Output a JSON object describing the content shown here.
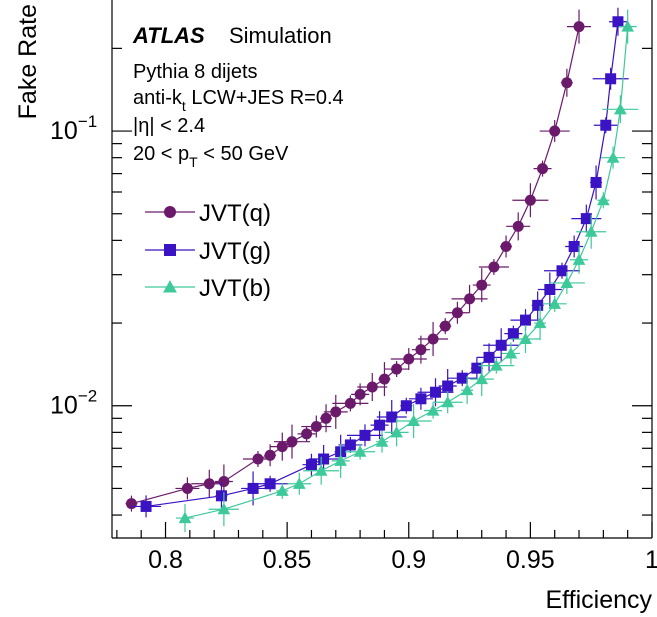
{
  "chart_data": {
    "type": "scatter",
    "experiment_label": "ATLAS",
    "experiment_sublabel": "Simulation",
    "annotations": [
      "Pythia 8 dijets",
      "anti-k",
      "t",
      " LCW+JES R=0.4",
      "|η| < 2.4",
      "20 < p",
      "T",
      " < 50 GeV"
    ],
    "xlabel": "Efficiency",
    "ylabel": "Fake Rate",
    "xlim": [
      0.778,
      1.0
    ],
    "ylim": [
      0.0033,
      0.3
    ],
    "yscale": "log",
    "x_ticks": [
      "0.8",
      "0.85",
      "0.9",
      "0.95",
      "1"
    ],
    "y_ticks": [
      {
        "value": 0.1,
        "base": "10",
        "exp": "−1"
      },
      {
        "value": 0.01,
        "base": "10",
        "exp": "−2"
      }
    ],
    "grid": false,
    "legend_position": "upper-left",
    "series": [
      {
        "name": "JVT(q)",
        "color": "#6b1a6b",
        "marker": "circle",
        "x": [
          0.786,
          0.809,
          0.818,
          0.824,
          0.838,
          0.843,
          0.848,
          0.852,
          0.858,
          0.862,
          0.866,
          0.87,
          0.876,
          0.88,
          0.885,
          0.89,
          0.895,
          0.9,
          0.905,
          0.91,
          0.915,
          0.92,
          0.925,
          0.93,
          0.935,
          0.94,
          0.945,
          0.95,
          0.955,
          0.96,
          0.965,
          0.97
        ],
        "y": [
          0.0044,
          0.005,
          0.0052,
          0.0053,
          0.0064,
          0.0066,
          0.0071,
          0.0074,
          0.0079,
          0.0084,
          0.009,
          0.0095,
          0.0102,
          0.011,
          0.0117,
          0.0125,
          0.0136,
          0.0148,
          0.016,
          0.0175,
          0.0195,
          0.0218,
          0.0245,
          0.0275,
          0.032,
          0.038,
          0.045,
          0.056,
          0.073,
          0.1,
          0.15,
          0.24
        ]
      },
      {
        "name": "JVT(g)",
        "color": "#3a13c4",
        "marker": "square",
        "x": [
          0.792,
          0.823,
          0.836,
          0.843,
          0.86,
          0.865,
          0.872,
          0.876,
          0.882,
          0.888,
          0.893,
          0.899,
          0.905,
          0.911,
          0.916,
          0.922,
          0.928,
          0.933,
          0.938,
          0.943,
          0.948,
          0.953,
          0.958,
          0.963,
          0.968,
          0.973,
          0.977,
          0.981,
          0.983,
          0.986
        ],
        "y": [
          0.0043,
          0.0047,
          0.005,
          0.0052,
          0.0061,
          0.0064,
          0.0068,
          0.0072,
          0.0078,
          0.0085,
          0.0091,
          0.01,
          0.0106,
          0.0112,
          0.0118,
          0.0126,
          0.0137,
          0.015,
          0.0166,
          0.0183,
          0.0205,
          0.0232,
          0.0265,
          0.031,
          0.038,
          0.048,
          0.065,
          0.105,
          0.155,
          0.25
        ]
      },
      {
        "name": "JVT(b)",
        "color": "#3ec99a",
        "marker": "triangle",
        "x": [
          0.808,
          0.824,
          0.848,
          0.855,
          0.864,
          0.872,
          0.88,
          0.889,
          0.895,
          0.902,
          0.91,
          0.916,
          0.924,
          0.93,
          0.936,
          0.942,
          0.948,
          0.954,
          0.96,
          0.965,
          0.97,
          0.975,
          0.98,
          0.984,
          0.987,
          0.99
        ],
        "y": [
          0.0039,
          0.0042,
          0.0049,
          0.0052,
          0.0058,
          0.0063,
          0.0068,
          0.0074,
          0.008,
          0.0088,
          0.0096,
          0.0103,
          0.0114,
          0.0125,
          0.014,
          0.0155,
          0.0175,
          0.02,
          0.0235,
          0.028,
          0.034,
          0.043,
          0.056,
          0.08,
          0.12,
          0.24
        ]
      }
    ]
  }
}
